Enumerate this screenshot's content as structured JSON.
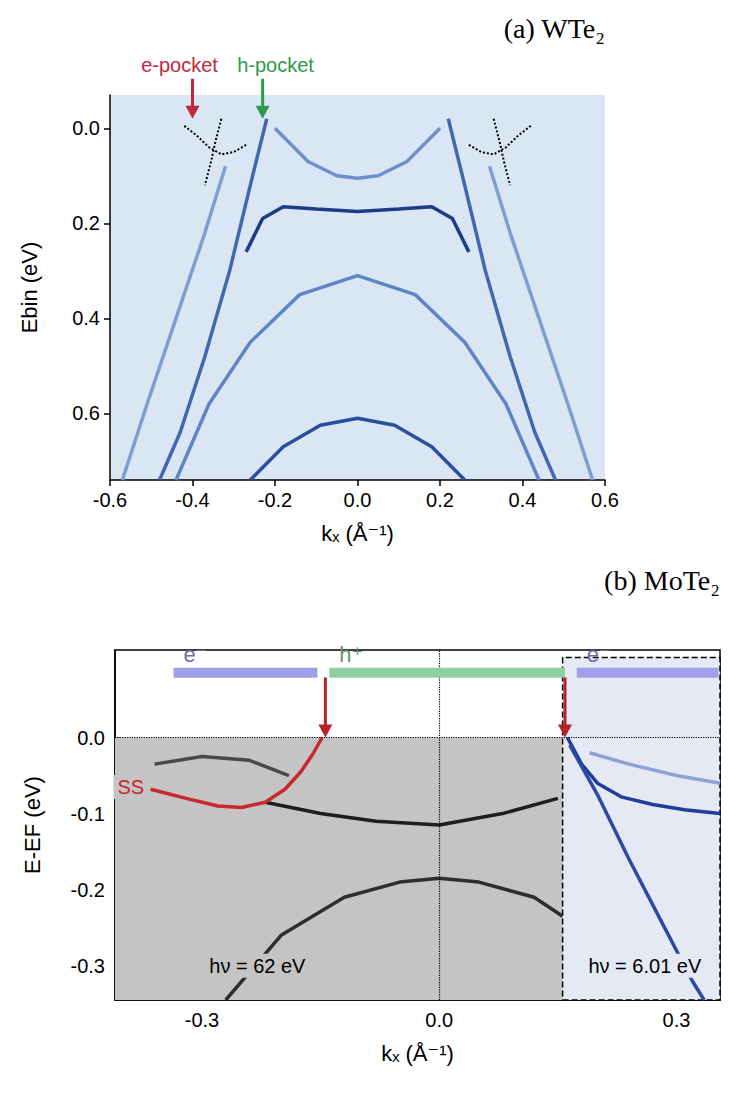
{
  "chart_data": [
    {
      "type": "line",
      "title": "(a) WTe₂",
      "x_label": "kₓ (Å⁻¹)",
      "y_label": "Ebin (eV)",
      "xlim": [
        -0.6,
        0.6
      ],
      "xticks": [
        -0.6,
        -0.4,
        -0.2,
        {
          "value": 0,
          "label": "0.0"
        },
        0.2,
        0.4,
        0.6
      ],
      "ylim": [
        0.74,
        -0.07
      ],
      "yticks": [
        {
          "value": 0,
          "label": "0.0"
        },
        0.2,
        0.4,
        0.6
      ],
      "grid": false,
      "marker": "none",
      "color": "#dae6f4",
      "series": [
        {
          "x": [
            -0.27,
            -0.23,
            -0.18,
            -0.1,
            0,
            0.1,
            0.18,
            0.23,
            0.27
          ],
          "values": [
            0.26,
            0.19,
            0.165,
            0.17,
            0.175,
            0.17,
            0.165,
            0.19,
            0.26
          ],
          "color": "#1d3c86",
          "line_style": "solid"
        },
        {
          "x": [
            -0.2,
            -0.12,
            -0.05,
            0,
            0.05,
            0.12,
            0.2
          ],
          "values": [
            0.0,
            0.07,
            0.1,
            0.105,
            0.1,
            0.07,
            0.0
          ],
          "color": "#6d8fcb",
          "line_style": "solid"
        },
        {
          "x": [
            -0.22,
            -0.26,
            -0.31,
            -0.37,
            -0.43,
            -0.48
          ],
          "values": [
            -0.02,
            0.12,
            0.3,
            0.48,
            0.64,
            0.74
          ],
          "color": "#3f68b0",
          "line_style": "solid"
        },
        {
          "x": [
            0.22,
            0.26,
            0.31,
            0.37,
            0.43,
            0.48
          ],
          "values": [
            -0.02,
            0.12,
            0.3,
            0.48,
            0.64,
            0.74
          ],
          "color": "#3f68b0",
          "line_style": "solid"
        },
        {
          "x": [
            -0.32,
            -0.37,
            -0.44,
            -0.51,
            -0.57
          ],
          "values": [
            0.08,
            0.22,
            0.4,
            0.58,
            0.74
          ],
          "color": "#7c9ed3",
          "line_style": "solid"
        },
        {
          "x": [
            0.32,
            0.37,
            0.44,
            0.51,
            0.57
          ],
          "values": [
            0.08,
            0.22,
            0.4,
            0.58,
            0.74
          ],
          "color": "#7c9ed3",
          "line_style": "solid"
        },
        {
          "x": [
            -0.44,
            -0.36,
            -0.26,
            -0.14,
            0,
            0.14,
            0.26,
            0.36,
            0.44
          ],
          "values": [
            0.74,
            0.58,
            0.45,
            0.35,
            0.31,
            0.35,
            0.45,
            0.58,
            0.74
          ],
          "color": "#5f85c4",
          "line_style": "solid"
        },
        {
          "x": [
            -0.26,
            -0.18,
            -0.09,
            0,
            0.09,
            0.18,
            0.26
          ],
          "values": [
            0.74,
            0.67,
            0.625,
            0.61,
            0.625,
            0.67,
            0.74
          ],
          "color": "#2a4f9c",
          "line_style": "solid"
        },
        {
          "x": [
            -0.42,
            -0.39,
            -0.36,
            -0.33,
            -0.3,
            -0.27
          ],
          "values": [
            -0.005,
            0.015,
            0.04,
            0.055,
            0.05,
            0.035
          ],
          "color": "#000000",
          "line_style": "dotted"
        },
        {
          "x": [
            -0.33,
            -0.345,
            -0.355,
            -0.37
          ],
          "values": [
            -0.02,
            0.03,
            0.07,
            0.12
          ],
          "color": "#000000",
          "line_style": "dotted"
        },
        {
          "x": [
            0.27,
            0.3,
            0.33,
            0.36,
            0.39,
            0.42
          ],
          "values": [
            0.035,
            0.05,
            0.055,
            0.04,
            0.015,
            -0.005
          ],
          "color": "#000000",
          "line_style": "dotted"
        },
        {
          "x": [
            0.33,
            0.345,
            0.355,
            0.37
          ],
          "values": [
            -0.02,
            0.03,
            0.07,
            0.12
          ],
          "color": "#000000",
          "line_style": "dotted"
        }
      ],
      "arrows": [
        {
          "label": "e-pocket",
          "x": -0.4,
          "y": -0.02,
          "color": "#c0283a"
        },
        {
          "label": "h-pocket",
          "x": -0.23,
          "y": -0.02,
          "color": "#2e9a4a"
        }
      ]
    },
    {
      "type": "line",
      "title": "(b) MoTe₂",
      "x_label": "kₓ (Å⁻¹)",
      "y_label": "E-EF (eV)",
      "xlim": [
        -0.41,
        0.355
      ],
      "xticks": [
        -0.3,
        {
          "value": 0,
          "label": "0.0"
        },
        0.3
      ],
      "ylim": [
        -0.345,
        0.115
      ],
      "yticks": [
        -0.3,
        -0.2,
        -0.1,
        {
          "value": 0,
          "label": "0.0"
        }
      ],
      "grid": false,
      "marker": "none",
      "color": "#c4c4c4",
      "ref_lines": {
        "x": 0,
        "y": 0
      },
      "inset": {
        "xlim": [
          0.156,
          0.355
        ],
        "ylim": [
          -0.345,
          0.105
        ],
        "color": "#e4e9f4"
      },
      "series": [
        {
          "x": [
            -0.36,
            -0.3,
            -0.24,
            -0.19
          ],
          "values": [
            -0.035,
            -0.025,
            -0.03,
            -0.05
          ],
          "color": "#4a4a4a",
          "line_style": "solid"
        },
        {
          "x": [
            -0.22,
            -0.15,
            -0.08,
            0,
            0.08,
            0.15
          ],
          "values": [
            -0.085,
            -0.1,
            -0.11,
            -0.115,
            -0.1,
            -0.08
          ],
          "color": "#1e1e1e",
          "line_style": "solid"
        },
        {
          "x": [
            -0.27,
            -0.2,
            -0.12,
            -0.05,
            0,
            0.05,
            0.12,
            0.156
          ],
          "values": [
            -0.345,
            -0.26,
            -0.21,
            -0.19,
            -0.185,
            -0.19,
            -0.21,
            -0.235
          ],
          "color": "#2e2e2e",
          "line_style": "solid"
        },
        {
          "x": [
            -0.365,
            -0.32,
            -0.28,
            -0.25,
            -0.22,
            -0.195,
            -0.175,
            -0.16,
            -0.148
          ],
          "values": [
            -0.068,
            -0.08,
            -0.09,
            -0.092,
            -0.085,
            -0.068,
            -0.045,
            -0.022,
            0.0
          ],
          "color": "#c8282e",
          "line_style": "solid"
        },
        {
          "x": [
            0.162,
            0.18,
            0.2,
            0.23,
            0.27,
            0.31,
            0.355
          ],
          "values": [
            0.0,
            -0.035,
            -0.06,
            -0.078,
            -0.088,
            -0.095,
            -0.1
          ],
          "color": "#1f3d99",
          "line_style": "solid"
        },
        {
          "x": [
            0.165,
            0.2,
            0.24,
            0.28,
            0.32,
            0.335
          ],
          "values": [
            -0.01,
            -0.075,
            -0.16,
            -0.24,
            -0.32,
            -0.345
          ],
          "color": "#2b4aa5",
          "line_style": "solid"
        },
        {
          "x": [
            0.19,
            0.24,
            0.3,
            0.355
          ],
          "values": [
            -0.02,
            -0.035,
            -0.05,
            -0.06
          ],
          "color": "#8fa2d6",
          "line_style": "solid"
        }
      ],
      "regions": [
        {
          "label": "e⁻",
          "from": -0.336,
          "to": -0.154,
          "y": 0.085,
          "color": "#a0a0ea"
        },
        {
          "label": "h⁺",
          "from": -0.139,
          "to": 0.159,
          "y": 0.085,
          "color": "#8fd0a2"
        },
        {
          "label": "e⁻",
          "from": 0.174,
          "to": 0.353,
          "y": 0.085,
          "color": "#a0a0ea"
        }
      ],
      "arrows": [
        {
          "x": -0.144,
          "y": 0,
          "color": "#b8202a"
        },
        {
          "x": 0.159,
          "y": 0,
          "color": "#b8202a"
        }
      ],
      "annotations": [
        {
          "text": "SS",
          "x": -0.39,
          "y": -0.065,
          "color": "#c8282e"
        },
        {
          "text": "hν = 62 eV",
          "x": -0.23,
          "y": -0.3,
          "color": "#000000"
        },
        {
          "text": "hν = 6.01 eV",
          "x": 0.26,
          "y": -0.3,
          "color": "#000000"
        }
      ]
    }
  ]
}
